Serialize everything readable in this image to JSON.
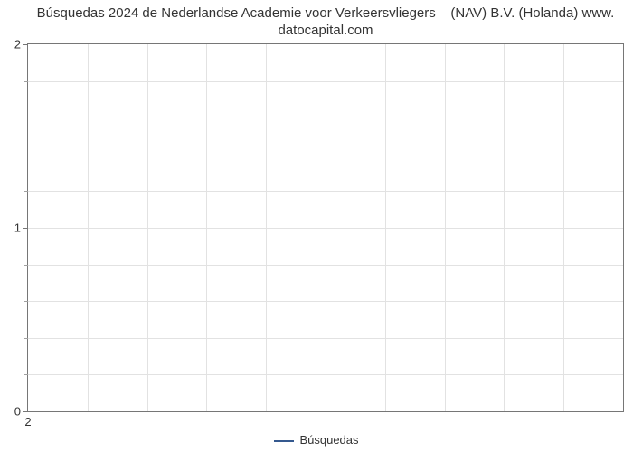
{
  "chart": {
    "type": "line",
    "title_line1": "Búsquedas 2024 de Nederlandse Academie voor Verkeersvliegers    (NAV) B.V. (Holanda) www.",
    "title_line2": "datocapital.com",
    "title_fontsize": 15,
    "title_color": "#333333",
    "background_color": "#ffffff",
    "plot_border_color": "#767676",
    "grid_color": "#e2e2e2",
    "tick_color": "#767676",
    "tick_label_color": "#333333",
    "tick_fontsize": 13,
    "xlim": [
      2,
      12
    ],
    "ylim": [
      0,
      2
    ],
    "y_ticks": [
      0,
      1,
      2
    ],
    "y_minor_ticks": [
      0.2,
      0.4,
      0.6,
      0.8,
      1.2,
      1.4,
      1.6,
      1.8
    ],
    "x_ticks": [
      2
    ],
    "x_gridlines": [
      3,
      4,
      5,
      6,
      7,
      8,
      9,
      10,
      11
    ],
    "y_gridlines": [
      0.2,
      0.4,
      0.6,
      0.8,
      1.0,
      1.2,
      1.4,
      1.6,
      1.8
    ],
    "legend": {
      "label": "Búsquedas",
      "line_color": "#35598f",
      "line_width": 2,
      "fontsize": 13,
      "text_color": "#333333"
    }
  }
}
